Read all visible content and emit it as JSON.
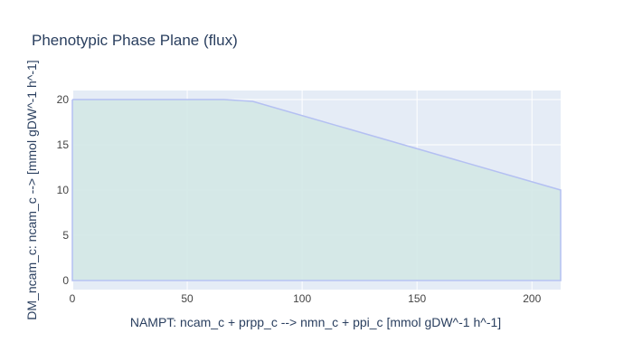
{
  "chart_data": {
    "type": "area",
    "title": "Phenotypic Phase Plane (flux)",
    "xlabel": "NAMPT: ncam_c + prpp_c --> nmn_c + ppi_c [mmol gDW^-1 h^-1]",
    "ylabel": "DM_ncam_c: ncam_c -->  [mmol gDW^-1 h^-1]",
    "xlim": [
      0,
      212.5
    ],
    "ylim": [
      -1,
      21
    ],
    "x_ticks": [
      0,
      50,
      100,
      150,
      200
    ],
    "y_ticks": [
      0,
      5,
      10,
      15,
      20
    ],
    "grid": true,
    "series": [
      {
        "x": [
          0,
          66,
          78.5,
          212.5,
          212.5,
          0,
          0
        ],
        "y": [
          20,
          20,
          19.8,
          10,
          0,
          0,
          20
        ]
      }
    ],
    "colors": {
      "plot_background": "#e5ecf6",
      "grid": "#ffffff",
      "line": "#b4c0f2",
      "fill": "#d3e8e6",
      "text": "#2a3f5f",
      "tick_text": "#444444"
    }
  }
}
